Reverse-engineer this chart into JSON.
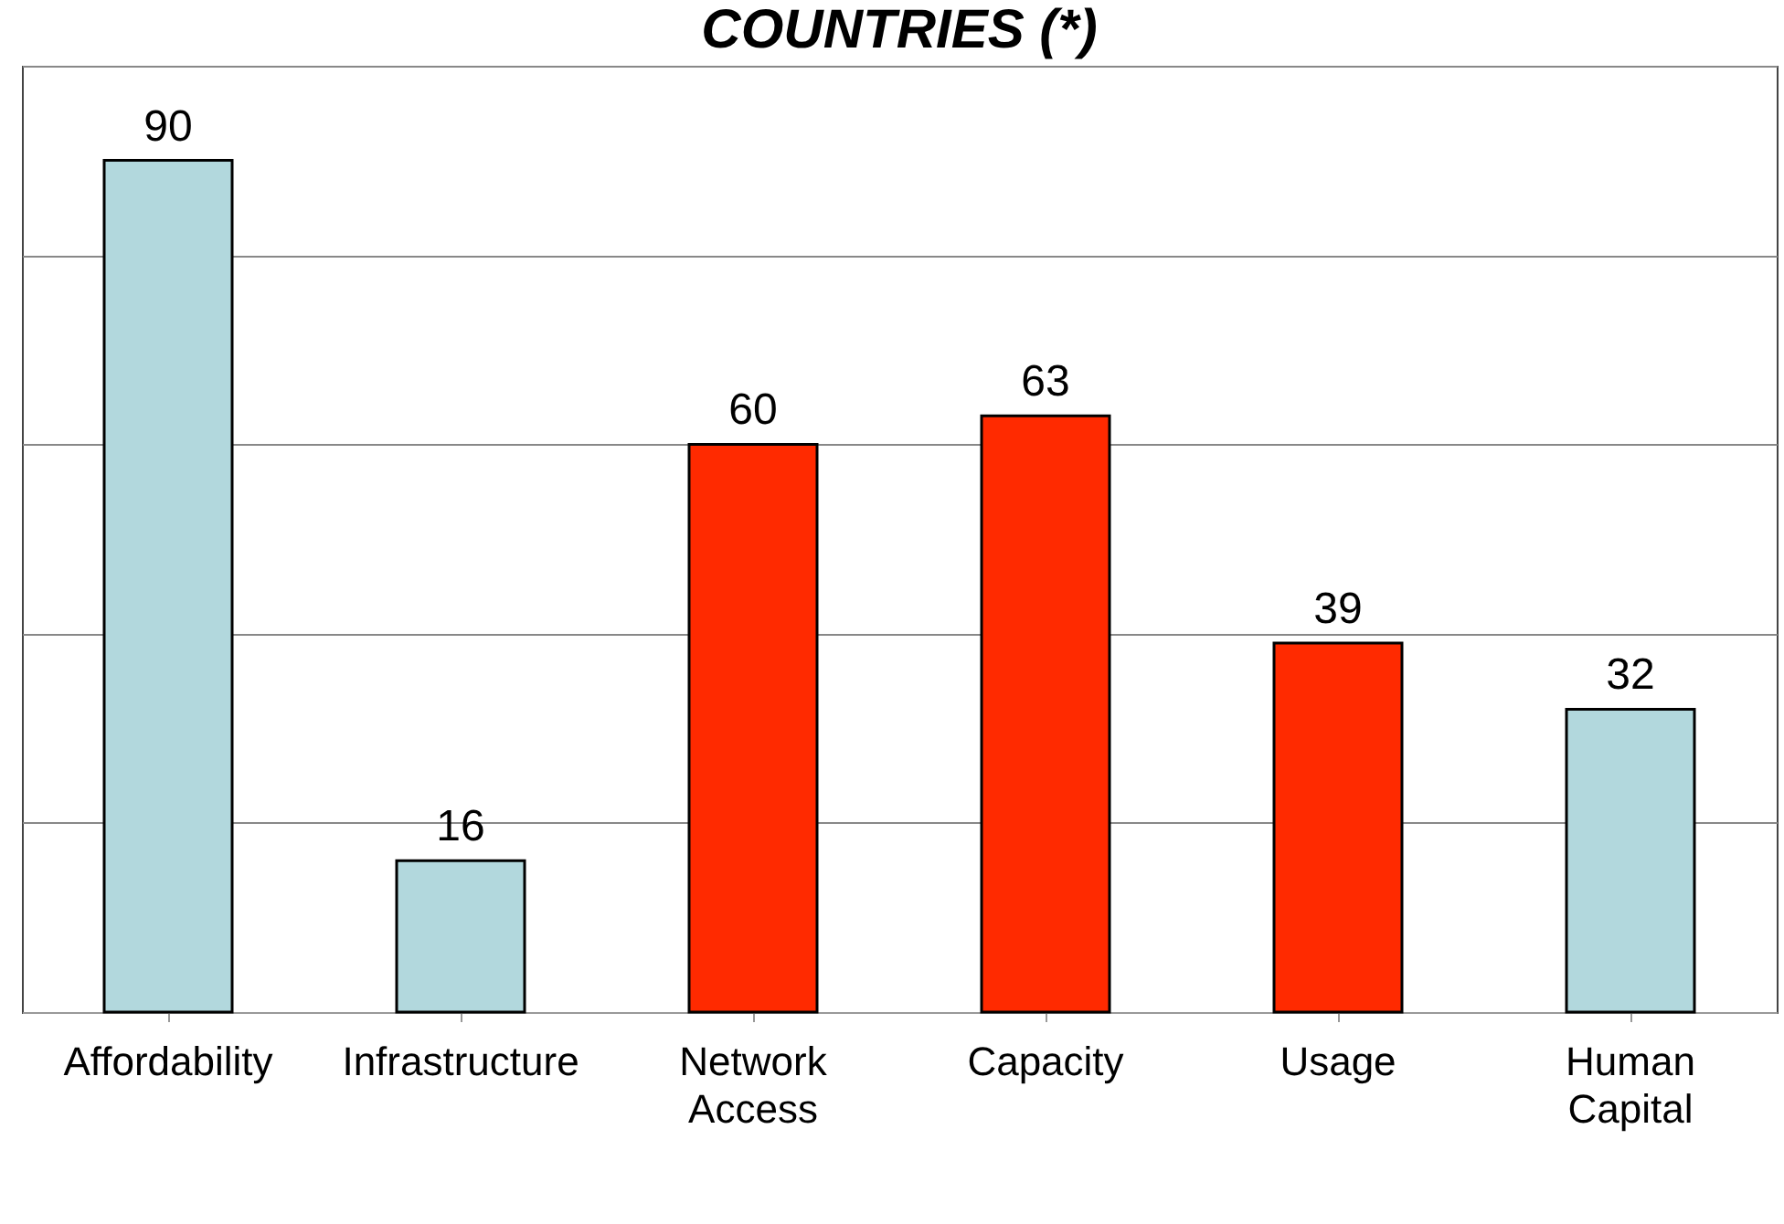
{
  "chart_data": {
    "type": "bar",
    "title": "COUNTRIES (*)",
    "categories": [
      "Affordability",
      "Infrastructure",
      "Network Access",
      "Capacity",
      "Usage",
      "Human Capital"
    ],
    "values": [
      90,
      16,
      60,
      63,
      39,
      32
    ],
    "colors": [
      "#b2d8dd",
      "#b2d8dd",
      "#ff2a00",
      "#ff2a00",
      "#ff2a00",
      "#b2d8dd"
    ],
    "ylim": [
      0,
      100
    ],
    "yticks": [
      0,
      20,
      40,
      60,
      80,
      100
    ],
    "grid": "y",
    "data_labels": true,
    "tick_labels": "x"
  }
}
